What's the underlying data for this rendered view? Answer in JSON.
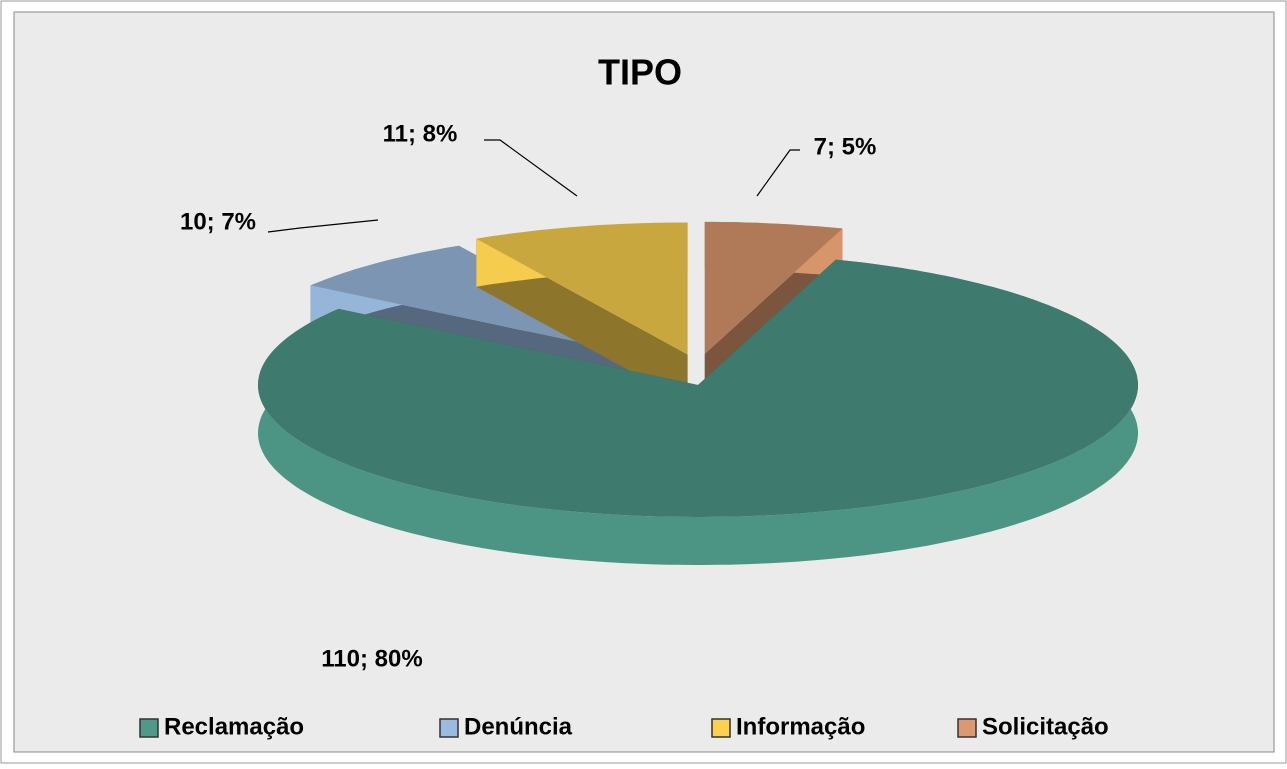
{
  "chart_data": {
    "type": "pie3d",
    "title": "TIPO",
    "categories": [
      "Reclamação",
      "Denúncia",
      "Informação",
      "Solicitação"
    ],
    "values": [
      110,
      10,
      11,
      7
    ],
    "value_labels": [
      "110; 80%",
      "10; 7%",
      "11; 8%",
      "7; 5%"
    ],
    "colors": [
      "#3e7a6d",
      "#7b95b2",
      "#c9a73f",
      "#b07a58"
    ],
    "legend": "bottom"
  }
}
